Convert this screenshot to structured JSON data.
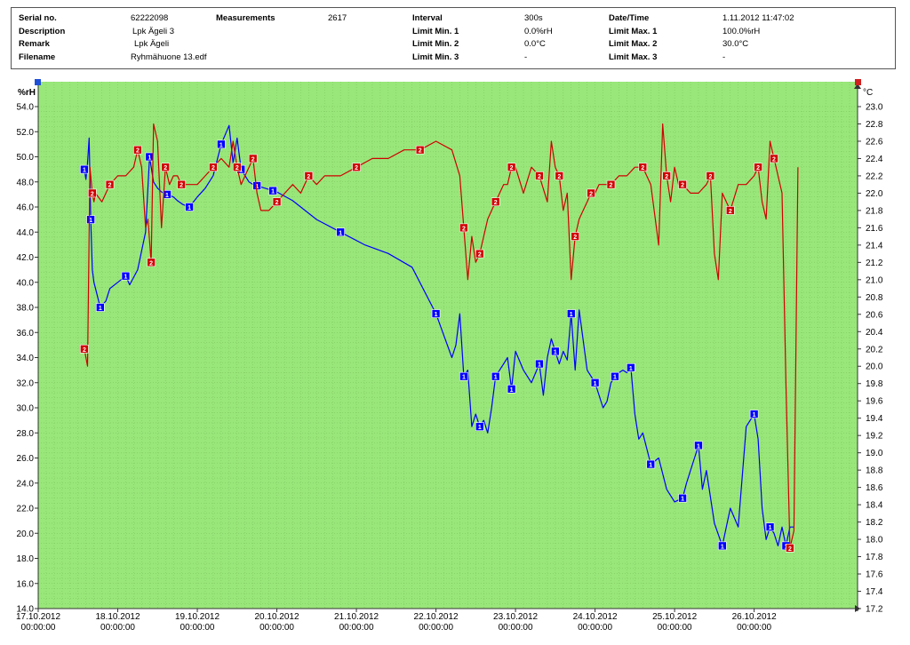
{
  "header": {
    "serial_label": "Serial no.",
    "serial_value": "62222098",
    "measurements_label": "Measurements",
    "measurements_value": "2617",
    "interval_label": "Interval",
    "interval_value": "300s",
    "datetime_label": "Date/Time",
    "datetime_value": "1.11.2012 11:47:02",
    "description_label": "Description",
    "description_value": "Lpk Ägeli 3",
    "limit_min1_label": "Limit Min. 1",
    "limit_min1_value": "0.0%rH",
    "limit_max1_label": "Limit Max. 1",
    "limit_max1_value": "100.0%rH",
    "remark_label": "Remark",
    "remark_value": "Lpk Ägeli",
    "limit_min2_label": "Limit Min. 2",
    "limit_min2_value": "0.0°C",
    "limit_max2_label": "Limit Max. 2",
    "limit_max2_value": "30.0°C",
    "filename_label": "Filename",
    "filename_value": "Ryhmähuone 13.edf",
    "limit_min3_label": "Limit Min. 3",
    "limit_min3_value": "-",
    "limit_max3_label": "Limit Max. 3",
    "limit_max3_value": "-"
  },
  "chart_data": {
    "type": "line",
    "background": "#99e67a",
    "grid": true,
    "y_left_label": "%rH",
    "y_right_label": "°C",
    "x_ticks": [
      "17.10.2012\n00:00:00",
      "18.10.2012\n00:00:00",
      "19.10.2012\n00:00:00",
      "20.10.2012\n00:00:00",
      "21.10.2012\n00:00:00",
      "22.10.2012\n00:00:00",
      "23.10.2012\n00:00:00",
      "24.10.2012\n00:00:00",
      "25.10.2012\n00:00:00",
      "26.10.2012\n00:00:00"
    ],
    "xlim": [
      0,
      10.3
    ],
    "y_left_lim": [
      14.0,
      54.0
    ],
    "y_left_ticks": [
      "14.0",
      "16.0",
      "18.0",
      "20.0",
      "22.0",
      "24.0",
      "26.0",
      "28.0",
      "30.0",
      "32.0",
      "34.0",
      "36.0",
      "38.0",
      "40.0",
      "42.0",
      "44.0",
      "46.0",
      "48.0",
      "50.0",
      "52.0",
      "54.0"
    ],
    "y_right_lim": [
      17.2,
      23.0
    ],
    "y_right_ticks": [
      "17.2",
      "17.4",
      "17.6",
      "17.8",
      "18.0",
      "18.2",
      "18.4",
      "18.6",
      "18.8",
      "19.0",
      "19.2",
      "19.4",
      "19.6",
      "19.8",
      "20.0",
      "20.2",
      "20.4",
      "20.6",
      "20.8",
      "21.0",
      "21.2",
      "21.4",
      "21.6",
      "21.8",
      "22.0",
      "22.2",
      "22.4",
      "22.6",
      "22.8",
      "23.0"
    ],
    "series": [
      {
        "marker": "1",
        "axis": "left",
        "color": "#0000ff",
        "x": [
          0.58,
          0.6,
          0.62,
          0.64,
          0.66,
          0.68,
          0.7,
          0.72,
          0.78,
          0.85,
          0.9,
          1.0,
          1.1,
          1.15,
          1.25,
          1.35,
          1.4,
          1.45,
          1.5,
          1.55,
          1.62,
          1.7,
          1.75,
          1.82,
          1.9,
          2.0,
          2.1,
          2.2,
          2.3,
          2.4,
          2.45,
          2.5,
          2.55,
          2.6,
          2.65,
          2.7,
          2.75,
          2.8,
          2.85,
          2.9,
          2.95,
          3.0,
          3.2,
          3.5,
          3.8,
          4.1,
          4.4,
          4.7,
          5.0,
          5.2,
          5.25,
          5.3,
          5.35,
          5.4,
          5.45,
          5.5,
          5.55,
          5.6,
          5.65,
          5.7,
          5.75,
          5.8,
          5.85,
          5.9,
          5.95,
          6.0,
          6.1,
          6.2,
          6.3,
          6.35,
          6.4,
          6.45,
          6.5,
          6.55,
          6.6,
          6.65,
          6.7,
          6.75,
          6.8,
          6.9,
          7.0,
          7.1,
          7.15,
          7.2,
          7.25,
          7.3,
          7.35,
          7.4,
          7.45,
          7.5,
          7.55,
          7.6,
          7.7,
          7.8,
          7.9,
          8.0,
          8.1,
          8.15,
          8.2,
          8.25,
          8.3,
          8.35,
          8.4,
          8.5,
          8.6,
          8.7,
          8.8,
          8.9,
          9.0,
          9.05,
          9.1,
          9.15,
          9.2,
          9.25,
          9.3,
          9.35,
          9.4,
          9.45,
          9.5
        ],
        "y": [
          49.0,
          48.2,
          49.5,
          51.5,
          45.0,
          41.0,
          40.0,
          39.5,
          38.0,
          38.5,
          39.5,
          40.0,
          40.5,
          39.8,
          41.0,
          44.0,
          50.0,
          48.0,
          47.5,
          47.2,
          47.0,
          46.8,
          46.5,
          46.2,
          46.0,
          46.8,
          47.5,
          48.5,
          51.0,
          52.5,
          49.5,
          51.5,
          49.0,
          48.5,
          48.0,
          47.8,
          47.7,
          47.6,
          47.5,
          47.4,
          47.3,
          47.2,
          46.5,
          45.0,
          44.0,
          43.0,
          42.3,
          41.2,
          37.5,
          34.0,
          35.0,
          37.5,
          32.5,
          33.0,
          28.5,
          29.5,
          28.5,
          29.0,
          28.0,
          30.0,
          32.5,
          33.0,
          33.5,
          34.0,
          31.5,
          34.5,
          33.0,
          32.0,
          33.5,
          31.0,
          34.0,
          35.5,
          34.5,
          33.5,
          34.5,
          33.8,
          37.5,
          33.0,
          37.8,
          33.0,
          32.0,
          30.0,
          30.5,
          32.0,
          32.5,
          32.8,
          33.0,
          32.8,
          33.2,
          29.5,
          27.5,
          28.0,
          25.5,
          26.0,
          23.5,
          22.5,
          22.8,
          24.0,
          25.0,
          26.0,
          27.0,
          23.5,
          25.0,
          20.8,
          19.0,
          22.0,
          20.5,
          28.5,
          29.5,
          27.5,
          22.0,
          19.5,
          20.5,
          20.0,
          19.0,
          20.5,
          19.0,
          20.5,
          20.5
        ]
      },
      {
        "marker": "2",
        "axis": "right",
        "color": "#d00000",
        "x": [
          0.58,
          0.6,
          0.62,
          0.65,
          0.68,
          0.7,
          0.72,
          0.8,
          0.9,
          1.0,
          1.1,
          1.2,
          1.25,
          1.3,
          1.35,
          1.38,
          1.42,
          1.45,
          1.5,
          1.55,
          1.6,
          1.65,
          1.7,
          1.75,
          1.8,
          1.9,
          2.0,
          2.1,
          2.2,
          2.3,
          2.4,
          2.45,
          2.5,
          2.55,
          2.6,
          2.65,
          2.7,
          2.75,
          2.8,
          2.9,
          3.0,
          3.1,
          3.2,
          3.3,
          3.4,
          3.5,
          3.6,
          3.8,
          4.0,
          4.2,
          4.4,
          4.6,
          4.8,
          5.0,
          5.2,
          5.3,
          5.35,
          5.4,
          5.45,
          5.5,
          5.55,
          5.6,
          5.65,
          5.7,
          5.75,
          5.8,
          5.85,
          5.9,
          5.95,
          6.0,
          6.1,
          6.2,
          6.3,
          6.4,
          6.45,
          6.5,
          6.55,
          6.6,
          6.65,
          6.7,
          6.75,
          6.8,
          6.85,
          6.9,
          6.95,
          7.0,
          7.05,
          7.1,
          7.2,
          7.3,
          7.4,
          7.5,
          7.6,
          7.7,
          7.8,
          7.85,
          7.9,
          7.95,
          8.0,
          8.05,
          8.1,
          8.2,
          8.3,
          8.4,
          8.45,
          8.5,
          8.55,
          8.6,
          8.7,
          8.8,
          8.9,
          9.0,
          9.05,
          9.1,
          9.15,
          9.2,
          9.25,
          9.3,
          9.35,
          9.4,
          9.45,
          9.5,
          9.55
        ],
        "y": [
          20.2,
          20.1,
          20.0,
          22.3,
          22.0,
          21.9,
          22.0,
          21.9,
          22.1,
          22.2,
          22.2,
          22.3,
          22.5,
          22.3,
          21.6,
          21.7,
          21.2,
          22.8,
          22.6,
          21.6,
          22.3,
          22.1,
          22.2,
          22.2,
          22.1,
          22.1,
          22.1,
          22.2,
          22.3,
          22.4,
          22.3,
          22.6,
          22.3,
          22.1,
          22.2,
          22.3,
          22.4,
          22.0,
          21.8,
          21.8,
          21.9,
          22.0,
          22.1,
          22.0,
          22.2,
          22.1,
          22.2,
          22.2,
          22.3,
          22.4,
          22.4,
          22.5,
          22.5,
          22.6,
          22.5,
          22.2,
          21.6,
          21.0,
          21.5,
          21.2,
          21.3,
          21.5,
          21.7,
          21.8,
          21.9,
          22.0,
          22.1,
          22.1,
          22.3,
          22.3,
          22.0,
          22.3,
          22.2,
          21.9,
          22.6,
          22.3,
          22.2,
          21.8,
          22.0,
          21.0,
          21.5,
          21.7,
          21.8,
          21.9,
          22.0,
          22.0,
          22.1,
          22.1,
          22.1,
          22.2,
          22.2,
          22.3,
          22.3,
          22.1,
          21.4,
          22.8,
          22.2,
          21.9,
          22.3,
          22.1,
          22.1,
          22.0,
          22.0,
          22.1,
          22.2,
          21.3,
          21.0,
          22.0,
          21.8,
          22.1,
          22.1,
          22.2,
          22.3,
          21.9,
          21.7,
          22.6,
          22.4,
          22.2,
          22.0,
          19.8,
          17.9,
          18.1,
          22.3
        ]
      }
    ]
  }
}
